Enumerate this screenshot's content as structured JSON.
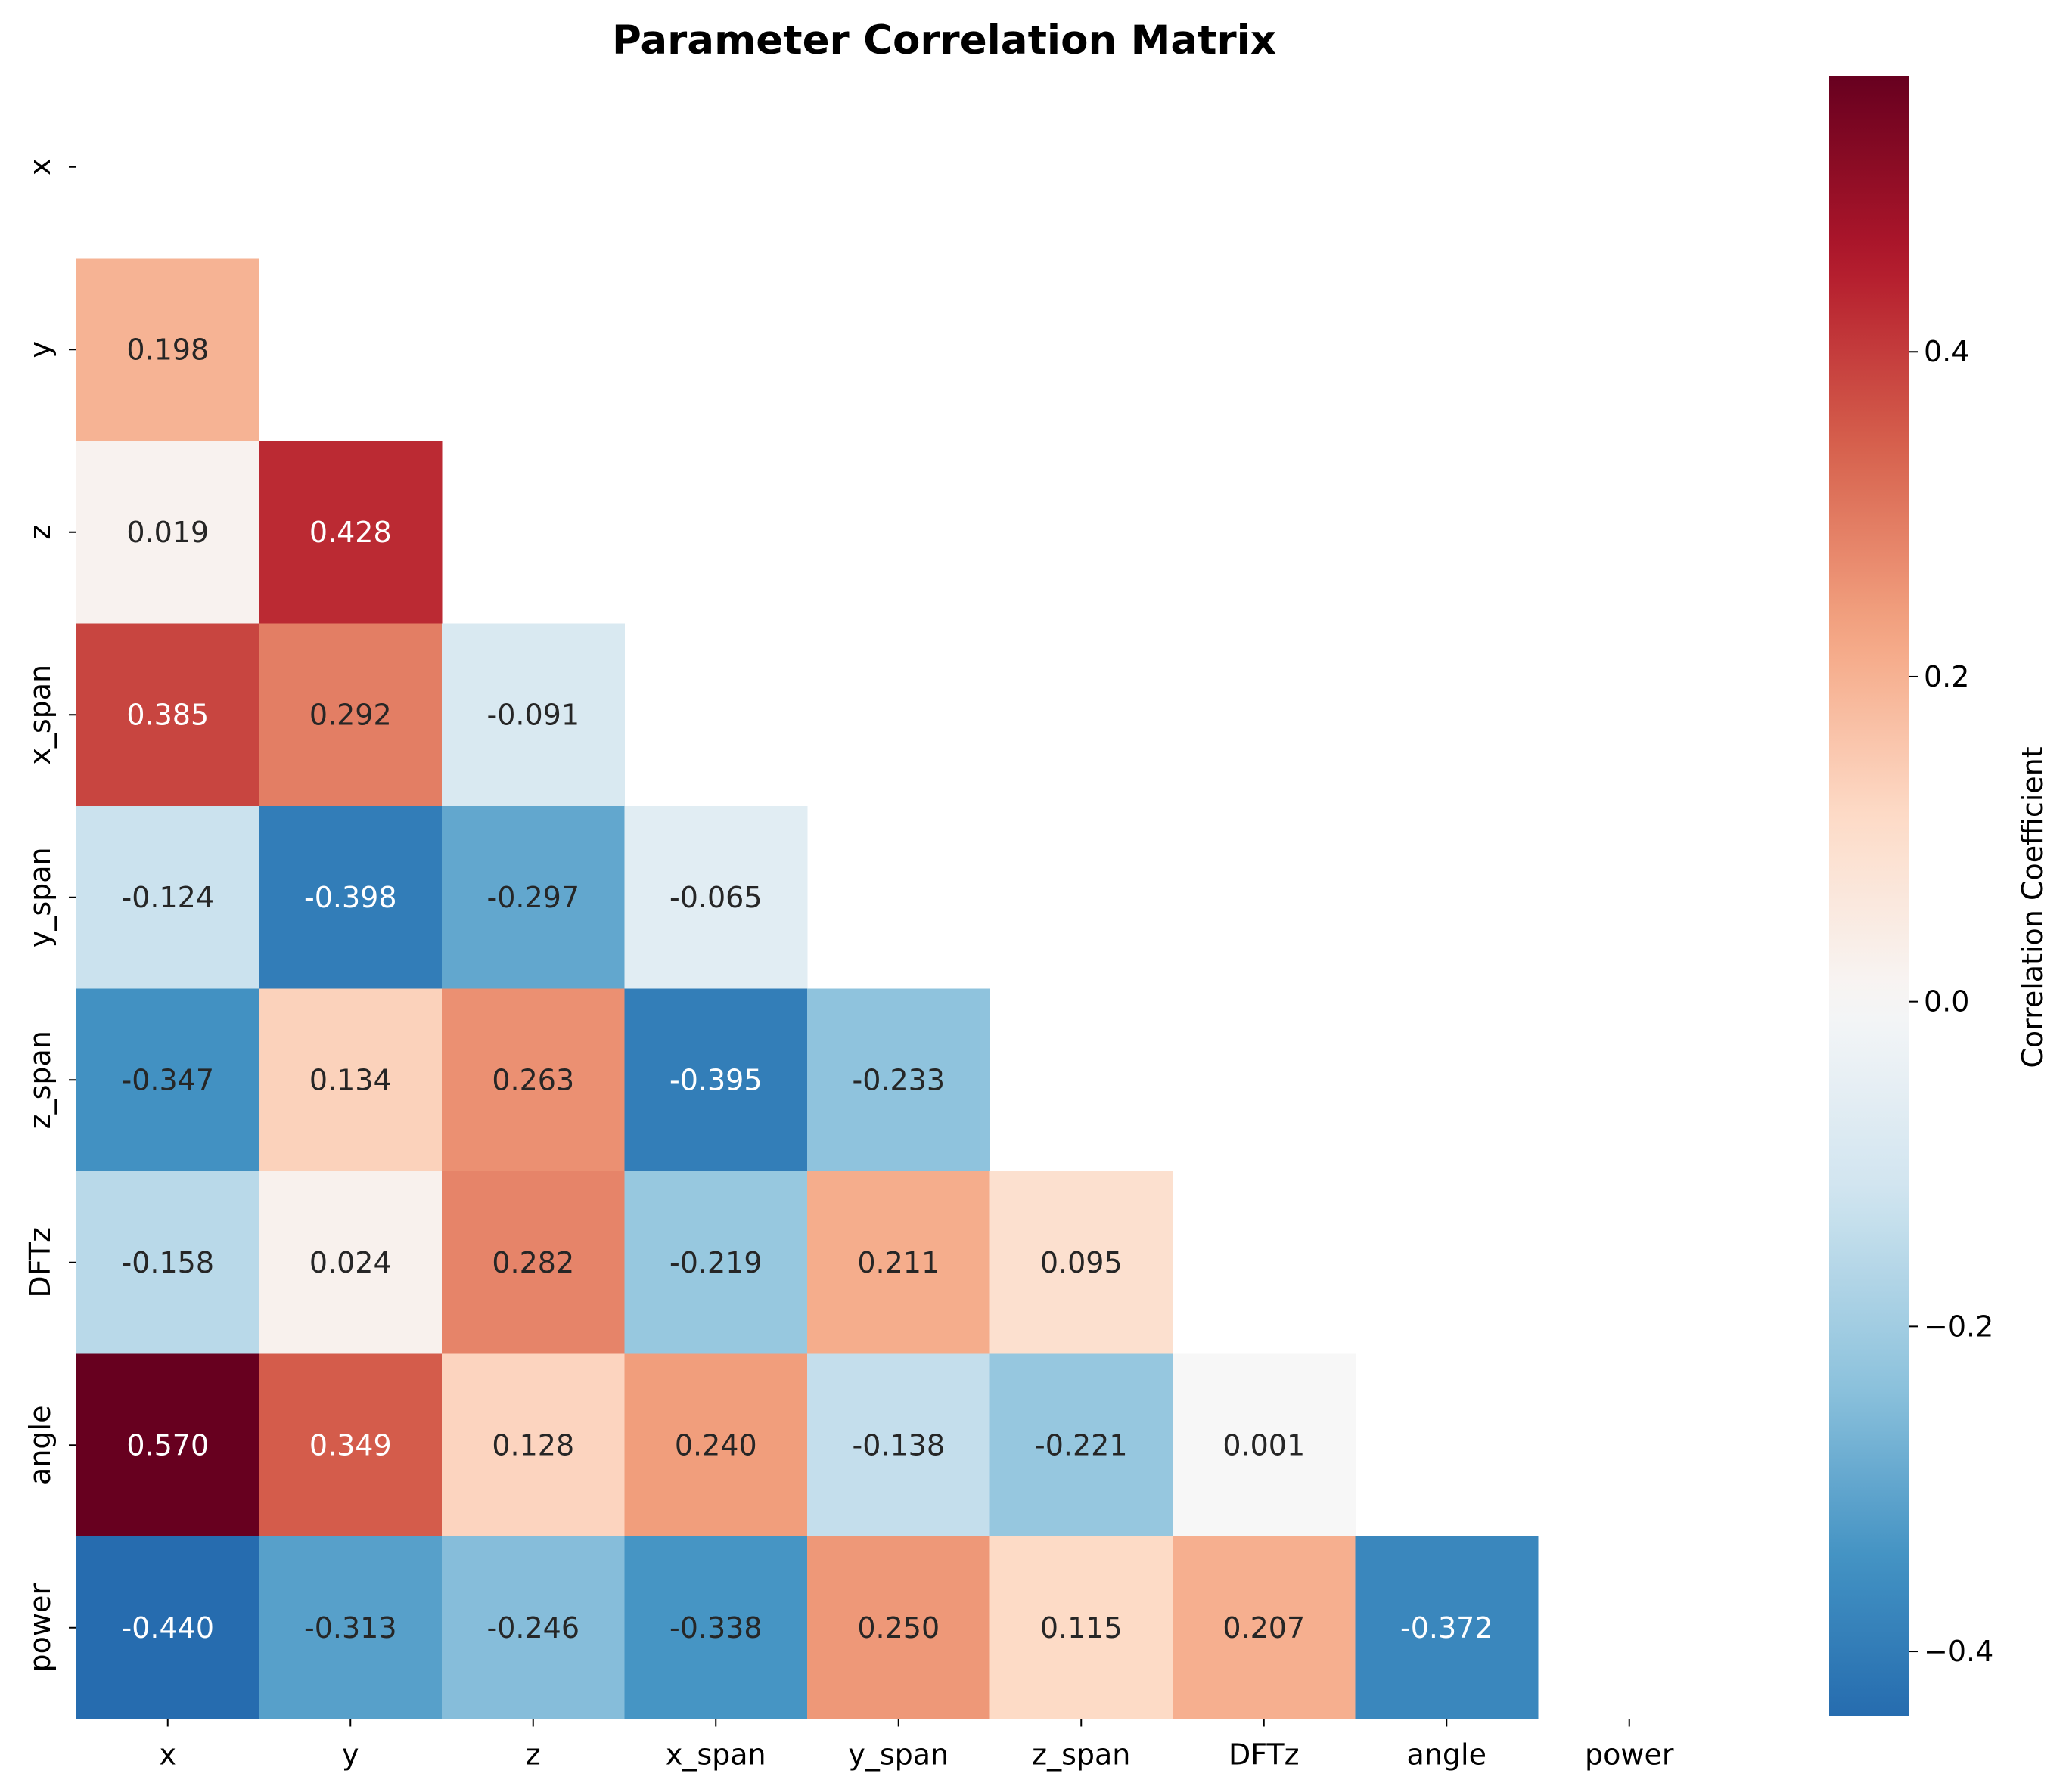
{
  "chart_data": {
    "type": "heatmap",
    "title": "Parameter Correlation Matrix",
    "variables": [
      "x",
      "y",
      "z",
      "x_span",
      "y_span",
      "z_span",
      "DFTz",
      "angle",
      "power"
    ],
    "mask": "upper-triangle-including-diagonal",
    "values": [
      [
        null,
        null,
        null,
        null,
        null,
        null,
        null,
        null,
        null
      ],
      [
        0.198,
        null,
        null,
        null,
        null,
        null,
        null,
        null,
        null
      ],
      [
        0.019,
        0.428,
        null,
        null,
        null,
        null,
        null,
        null,
        null
      ],
      [
        0.385,
        0.292,
        -0.091,
        null,
        null,
        null,
        null,
        null,
        null
      ],
      [
        -0.124,
        -0.398,
        -0.297,
        -0.065,
        null,
        null,
        null,
        null,
        null
      ],
      [
        -0.347,
        0.134,
        0.263,
        -0.395,
        -0.233,
        null,
        null,
        null,
        null
      ],
      [
        -0.158,
        0.024,
        0.282,
        -0.219,
        0.211,
        0.095,
        null,
        null,
        null
      ],
      [
        0.57,
        0.349,
        0.128,
        0.24,
        -0.138,
        -0.221,
        0.001,
        null,
        null
      ],
      [
        -0.44,
        -0.313,
        -0.246,
        -0.338,
        0.25,
        0.115,
        0.207,
        -0.372,
        null
      ]
    ],
    "value_format": "3 decimals",
    "colormap": "RdBu_r",
    "vmin": -0.44,
    "vmax": 0.57,
    "colorbar": {
      "label": "Correlation Coefficient",
      "ticks": [
        -0.4,
        -0.2,
        0.0,
        0.2,
        0.4
      ],
      "tick_labels": [
        "−0.4",
        "−0.2",
        "0.0",
        "0.2",
        "0.4"
      ]
    },
    "legend": "none",
    "grid": false
  }
}
